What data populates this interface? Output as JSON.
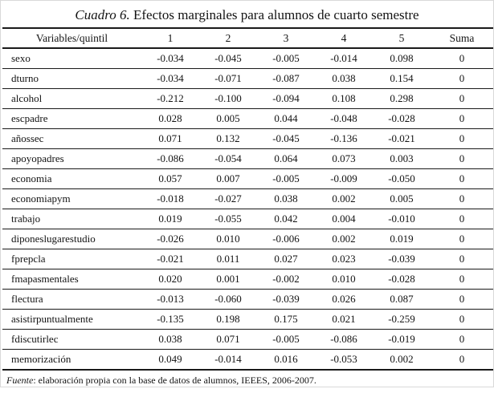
{
  "title": {
    "caption_label": "Cuadro 6.",
    "caption_text": "Efectos marginales para alumnos de cuarto semestre"
  },
  "table": {
    "columns": [
      "Variables/quintil",
      "1",
      "2",
      "3",
      "4",
      "5",
      "Suma"
    ],
    "rows": [
      {
        "variable": "sexo",
        "values": [
          "-0.034",
          "-0.045",
          "-0.005",
          "-0.014",
          "0.098",
          "0"
        ]
      },
      {
        "variable": "dturno",
        "values": [
          "-0.034",
          "-0.071",
          "-0.087",
          "0.038",
          "0.154",
          "0"
        ]
      },
      {
        "variable": "alcohol",
        "values": [
          "-0.212",
          "-0.100",
          "-0.094",
          "0.108",
          "0.298",
          "0"
        ]
      },
      {
        "variable": "escpadre",
        "values": [
          "0.028",
          "0.005",
          "0.044",
          "-0.048",
          "-0.028",
          "0"
        ]
      },
      {
        "variable": "añossec",
        "values": [
          "0.071",
          "0.132",
          "-0.045",
          "-0.136",
          "-0.021",
          "0"
        ]
      },
      {
        "variable": "apoyopadres",
        "values": [
          "-0.086",
          "-0.054",
          "0.064",
          "0.073",
          "0.003",
          "0"
        ]
      },
      {
        "variable": "economia",
        "values": [
          "0.057",
          "0.007",
          "-0.005",
          "-0.009",
          "-0.050",
          "0"
        ]
      },
      {
        "variable": "economiapym",
        "values": [
          "-0.018",
          "-0.027",
          "0.038",
          "0.002",
          "0.005",
          "0"
        ]
      },
      {
        "variable": "trabajo",
        "values": [
          "0.019",
          "-0.055",
          "0.042",
          "0.004",
          "-0.010",
          "0"
        ]
      },
      {
        "variable": "diponeslugarestudio",
        "values": [
          "-0.026",
          "0.010",
          "-0.006",
          "0.002",
          "0.019",
          "0"
        ]
      },
      {
        "variable": "fprepcla",
        "values": [
          "-0.021",
          "0.011",
          "0.027",
          "0.023",
          "-0.039",
          "0"
        ]
      },
      {
        "variable": "fmapasmentales",
        "values": [
          "0.020",
          "0.001",
          "-0.002",
          "0.010",
          "-0.028",
          "0"
        ]
      },
      {
        "variable": "flectura",
        "values": [
          "-0.013",
          "-0.060",
          "-0.039",
          "0.026",
          "0.087",
          "0"
        ]
      },
      {
        "variable": "asistirpuntualmente",
        "values": [
          "-0.135",
          "0.198",
          "0.175",
          "0.021",
          "-0.259",
          "0"
        ]
      },
      {
        "variable": "fdiscutirlec",
        "values": [
          "0.038",
          "0.071",
          "-0.005",
          "-0.086",
          "-0.019",
          "0"
        ]
      },
      {
        "variable": "memorización",
        "values": [
          "0.049",
          "-0.014",
          "0.016",
          "-0.053",
          "0.002",
          "0"
        ]
      }
    ]
  },
  "footer": {
    "source_label": "Fuente",
    "source_text": ": elaboración propia con la base de datos de alumnos, IEEES, 2006-2007."
  }
}
